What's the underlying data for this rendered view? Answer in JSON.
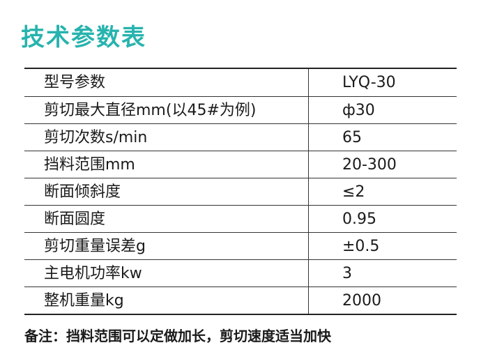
{
  "title": "技术参数表",
  "table": {
    "rows": [
      [
        "型号参数",
        "LYQ-30"
      ],
      [
        "剪切最大直径mm(以45#为例)",
        "ф30"
      ],
      [
        "剪切次数s/min",
        "65"
      ],
      [
        "挡料范围mm",
        "20-300"
      ],
      [
        "断面倾斜度",
        "≤2"
      ],
      [
        "断面圆度",
        "0.95"
      ],
      [
        "剪切重量误差g",
        "±0.5"
      ],
      [
        "主电机功率kw",
        "3"
      ],
      [
        "整机重量kg",
        "2000"
      ]
    ]
  },
  "note": "备注：挡料范围可以定做加长，剪切速度适当加快"
}
